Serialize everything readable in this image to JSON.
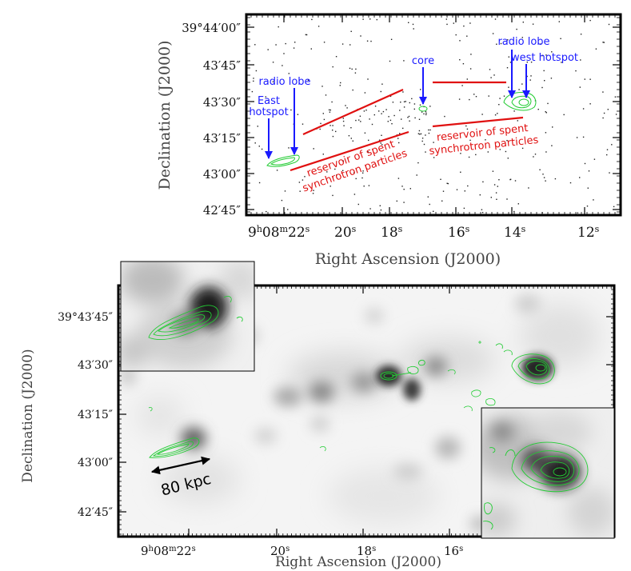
{
  "top_panel": {
    "xlabel": "Right Ascension (J2000)",
    "ylabel": "Declination (J2000)",
    "y_ticks": [
      "39°44′00″",
      "43′45″",
      "43′30″",
      "43′15″",
      "43′00″",
      "42′45″"
    ],
    "x_ticks": {
      "first_h": "9",
      "first_m": "08",
      "first_s": "22",
      "rest": [
        "20",
        "18",
        "16",
        "14",
        "12"
      ]
    },
    "annotations": {
      "east_hotspot_line1": "East",
      "east_hotspot_line2": "hotspot",
      "radio_lobe_east": "radio lobe",
      "core": "core",
      "radio_lobe_west": "radio lobe",
      "west_hotspot": "west hotspot",
      "reservoir_east_line1": "reservoir of spent",
      "reservoir_east_line2": "synchrotron particles",
      "reservoir_west_line1": "reservoir of spent",
      "reservoir_west_line2": "synchrotron particles"
    },
    "colors": {
      "annotation_blue": "#1a1aff",
      "annotation_red": "#e01010",
      "contour": "#22cc33"
    }
  },
  "bottom_panel": {
    "xlabel": "Right Ascension (J2000)",
    "ylabel": "Declination (J2000)",
    "y_ticks": [
      "39°43′45″",
      "43′30″",
      "43′15″",
      "43′00″",
      "42′45″"
    ],
    "x_ticks": {
      "first_h": "9",
      "first_m": "08",
      "first_s": "22",
      "rest": [
        "20",
        "18",
        "16"
      ]
    },
    "scale_bar": "80 kpc"
  }
}
